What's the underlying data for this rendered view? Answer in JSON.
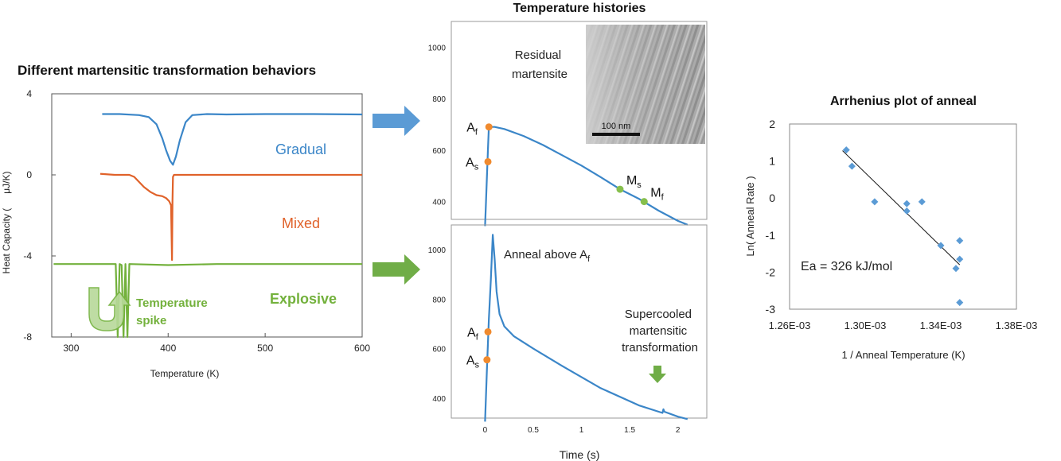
{
  "panel_titles": {
    "left": "Different martensitic transformation behaviors",
    "center": "Temperature histories",
    "right": "Arrhenius plot of anneal"
  },
  "colors": {
    "blue": "#3b86c8",
    "orange": "#e0622a",
    "green": "#73b13c",
    "green_light": "#b7d99a",
    "orange_dot": "#f08a2e",
    "green_dot": "#86bf4c",
    "arrow_blue": "#5b9bd5",
    "arrow_green": "#70ad47",
    "diamond": "#5b9bd5",
    "frame": "#9a9a9a"
  },
  "icons": {
    "arrow_to_top": "right-arrow-icon",
    "arrow_to_bottom": "right-arrow-icon",
    "spike": "u-turn-arrow-icon",
    "down_arrow": "down-arrow-icon"
  },
  "chart_data": [
    {
      "type": "line",
      "title": "Different martensitic transformation behaviors",
      "xlabel": "Temperature (K)",
      "ylabel": "Heat Capacity (",
      "ylabel_unit": "μJ/K)",
      "xlim": [
        280,
        600
      ],
      "ylim": [
        -8,
        4
      ],
      "xticks": [
        "300",
        "400",
        "500",
        "600"
      ],
      "yticks": [
        "4",
        "0",
        "-4",
        "-8"
      ],
      "series": [
        {
          "name": "Gradual",
          "x": [
            332,
            350,
            370,
            380,
            388,
            394,
            398,
            402,
            405,
            408,
            412,
            418,
            425,
            440,
            460,
            500,
            550,
            600
          ],
          "y": [
            3.0,
            3.0,
            2.95,
            2.85,
            2.5,
            1.8,
            1.2,
            0.7,
            0.5,
            0.9,
            1.7,
            2.6,
            2.95,
            3.0,
            2.98,
            3.0,
            3.0,
            2.98
          ]
        },
        {
          "name": "Mixed",
          "x": [
            330,
            345,
            360,
            365,
            370,
            375,
            382,
            388,
            394,
            398,
            401,
            403,
            404,
            404.5,
            405,
            406,
            407,
            440,
            500,
            600
          ],
          "y": [
            0.05,
            0.0,
            0.0,
            -0.1,
            -0.35,
            -0.6,
            -0.85,
            -1.0,
            -1.05,
            -1.15,
            -1.3,
            -1.5,
            -4.2,
            -1.3,
            -0.1,
            0.0,
            0.0,
            0.0,
            0.0,
            0.0
          ]
        },
        {
          "name": "Explosive",
          "x": [
            282,
            320,
            346,
            348,
            350,
            352,
            354,
            356,
            358,
            360,
            400,
            450,
            500,
            550,
            600
          ],
          "y": [
            -4.4,
            -4.4,
            -4.4,
            -8,
            -4.4,
            -4.45,
            -8,
            -4.4,
            -8,
            -4.4,
            -4.45,
            -4.4,
            -4.4,
            -4.4,
            -4.4
          ]
        }
      ],
      "annotations": {
        "spike": "Temperature\nspike"
      }
    },
    {
      "type": "line",
      "title": "Temperature histories",
      "xlabel": "",
      "ylabel": "",
      "xlim": [
        -0.35,
        2.3
      ],
      "ylim": [
        300,
        1100
      ],
      "yticks": [
        "1000",
        "800",
        "600",
        "400"
      ],
      "series": [
        {
          "name": "Residual martensite",
          "x": [
            0.0,
            0.01,
            0.03,
            0.04,
            0.06,
            0.1,
            0.2,
            0.4,
            0.6,
            0.8,
            1.0,
            1.2,
            1.4,
            1.6,
            1.8,
            2.0,
            2.1
          ],
          "y": [
            305,
            400,
            600,
            690,
            690,
            690,
            682,
            655,
            620,
            580,
            540,
            495,
            448,
            410,
            365,
            325,
            310
          ]
        }
      ],
      "markers": [
        {
          "label": "A",
          "sub": "f",
          "x": 0.04,
          "y": 690,
          "color": "orange"
        },
        {
          "label": "A",
          "sub": "s",
          "x": 0.03,
          "y": 555,
          "color": "orange"
        },
        {
          "label": "M",
          "sub": "s",
          "x": 1.4,
          "y": 448,
          "color": "green"
        },
        {
          "label": "M",
          "sub": "f",
          "x": 1.65,
          "y": 400,
          "color": "green"
        }
      ],
      "inset": {
        "label": "Residual\nmartensite",
        "scalebar": "100 nm"
      }
    },
    {
      "type": "line",
      "title": "",
      "xlabel": "Time (s)",
      "ylabel": "",
      "xlim": [
        -0.35,
        2.3
      ],
      "ylim": [
        300,
        1100
      ],
      "xticks": [
        "0",
        "0.5",
        "1",
        "1.5",
        "2"
      ],
      "yticks": [
        "1000",
        "800",
        "600",
        "400"
      ],
      "series": [
        {
          "name": "Anneal above Af",
          "x": [
            0.0,
            0.02,
            0.04,
            0.06,
            0.08,
            0.1,
            0.12,
            0.15,
            0.2,
            0.3,
            0.5,
            0.8,
            1.2,
            1.6,
            1.84,
            1.85,
            1.86,
            2.0,
            2.1
          ],
          "y": [
            305,
            520,
            720,
            880,
            1060,
            960,
            830,
            740,
            690,
            650,
            600,
            530,
            440,
            370,
            340,
            355,
            345,
            325,
            315
          ]
        }
      ],
      "markers": [
        {
          "label": "A",
          "sub": "f",
          "x": 0.03,
          "y": 668,
          "color": "orange"
        },
        {
          "label": "A",
          "sub": "s",
          "x": 0.02,
          "y": 555,
          "color": "orange"
        }
      ],
      "annotations": {
        "anneal": "Anneal above A",
        "anneal_sub": "f",
        "supercooled": "Supercooled\nmartensitic\ntransformation"
      }
    },
    {
      "type": "scatter",
      "title": "Arrhenius plot of anneal",
      "xlabel": "1 / Anneal Temperature (K)",
      "ylabel": "Ln( Anneal Rate )",
      "xlim": [
        0.00126,
        0.00138
      ],
      "ylim": [
        -3,
        2
      ],
      "xticks": [
        "1.26E-03",
        "1.30E-03",
        "1.34E-03",
        "1.38E-03"
      ],
      "yticks": [
        "2",
        "1",
        "0",
        "-1",
        "-2",
        "-3"
      ],
      "points": [
        [
          0.00129,
          1.3
        ],
        [
          0.001293,
          0.86
        ],
        [
          0.001305,
          -0.1
        ],
        [
          0.001322,
          -0.15
        ],
        [
          0.001322,
          -0.35
        ],
        [
          0.00133,
          -0.1
        ],
        [
          0.00134,
          -1.28
        ],
        [
          0.001348,
          -1.9
        ],
        [
          0.00135,
          -1.15
        ],
        [
          0.00135,
          -1.65
        ],
        [
          0.00135,
          -2.82
        ]
      ],
      "fit": {
        "x": [
          0.001288,
          0.00135
        ],
        "y": [
          1.28,
          -1.8
        ]
      },
      "annotation": "Ea = 326 kJ/mol"
    }
  ]
}
